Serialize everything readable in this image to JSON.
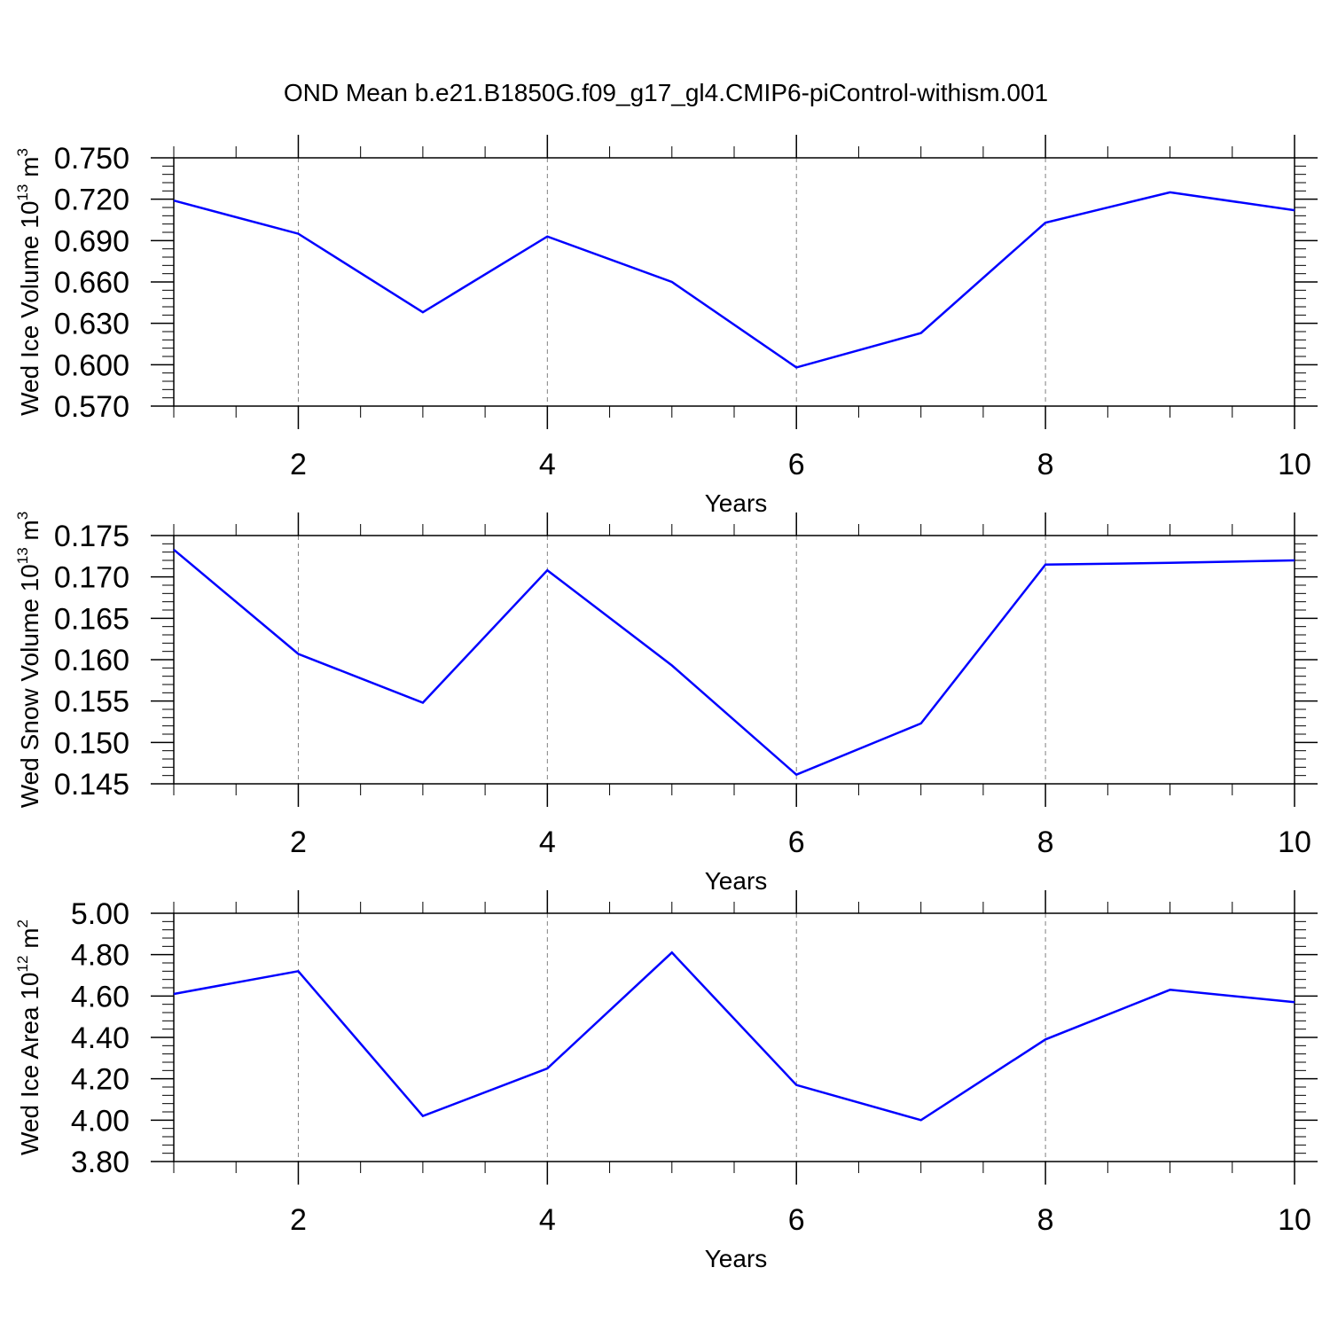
{
  "figure": {
    "title": "OND Mean b.e21.B1850G.f09_g17_gl4.CMIP6-piControl-withism.001"
  },
  "colors": {
    "line": "#0000ff",
    "axis": "#000000",
    "grid": "#808080"
  },
  "chart_data": [
    {
      "type": "line",
      "xlabel": "Years",
      "ylabel_base": "Wed Ice Volume 10",
      "ylabel_exp": "13",
      "ylabel_unit": " m",
      "ylabel_unit_exp": "3",
      "xlim": [
        1,
        10
      ],
      "ylim": [
        0.57,
        0.75
      ],
      "xticks": [
        2,
        4,
        6,
        8,
        10
      ],
      "xtick_labels": [
        "2",
        "4",
        "6",
        "8",
        "10"
      ],
      "yticks": [
        0.57,
        0.6,
        0.63,
        0.66,
        0.69,
        0.72,
        0.75
      ],
      "ytick_labels": [
        "0.570",
        "0.600",
        "0.630",
        "0.660",
        "0.690",
        "0.720",
        "0.750"
      ],
      "grid": "x-dashed",
      "x": [
        1,
        2,
        3,
        4,
        5,
        6,
        7,
        8,
        9,
        10
      ],
      "y": [
        0.719,
        0.695,
        0.638,
        0.693,
        0.66,
        0.598,
        0.623,
        0.703,
        0.725,
        0.712
      ]
    },
    {
      "type": "line",
      "xlabel": "Years",
      "ylabel_base": "Wed Snow Volume 10",
      "ylabel_exp": "13",
      "ylabel_unit": " m",
      "ylabel_unit_exp": "3",
      "xlim": [
        1,
        10
      ],
      "ylim": [
        0.145,
        0.175
      ],
      "xticks": [
        2,
        4,
        6,
        8,
        10
      ],
      "xtick_labels": [
        "2",
        "4",
        "6",
        "8",
        "10"
      ],
      "yticks": [
        0.145,
        0.15,
        0.155,
        0.16,
        0.165,
        0.17,
        0.175
      ],
      "ytick_labels": [
        "0.145",
        "0.150",
        "0.155",
        "0.160",
        "0.165",
        "0.170",
        "0.175"
      ],
      "grid": "x-dashed",
      "x": [
        1,
        2,
        3,
        4,
        5,
        6,
        7,
        8,
        9,
        10
      ],
      "y": [
        0.1733,
        0.1607,
        0.1548,
        0.1708,
        0.1593,
        0.1461,
        0.1523,
        0.1715,
        0.1717,
        0.172
      ]
    },
    {
      "type": "line",
      "xlabel": "Years",
      "ylabel_base": "Wed Ice Area 10",
      "ylabel_exp": "12",
      "ylabel_unit": " m",
      "ylabel_unit_exp": "2",
      "xlim": [
        1,
        10
      ],
      "ylim": [
        3.8,
        5.0
      ],
      "xticks": [
        2,
        4,
        6,
        8,
        10
      ],
      "xtick_labels": [
        "2",
        "4",
        "6",
        "8",
        "10"
      ],
      "yticks": [
        3.8,
        4.0,
        4.2,
        4.4,
        4.6,
        4.8,
        5.0
      ],
      "ytick_labels": [
        "3.80",
        "4.00",
        "4.20",
        "4.40",
        "4.60",
        "4.80",
        "5.00"
      ],
      "grid": "x-dashed",
      "x": [
        1,
        2,
        3,
        4,
        5,
        6,
        7,
        8,
        9,
        10
      ],
      "y": [
        4.61,
        4.72,
        4.02,
        4.25,
        4.81,
        4.17,
        4.0,
        4.39,
        4.63,
        4.57
      ]
    }
  ]
}
